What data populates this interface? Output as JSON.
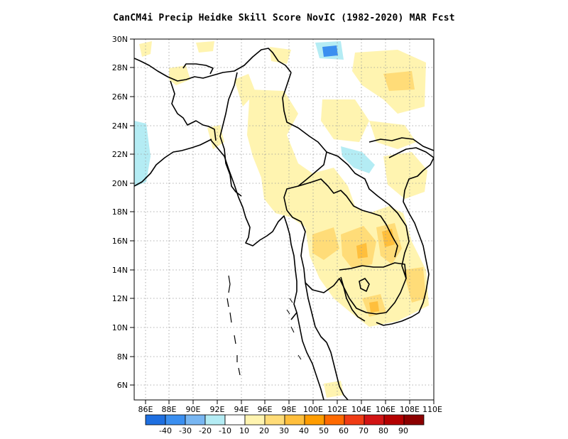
{
  "title": "CanCM4i Precip Heidke Skill Score NovIC (1982-2020) MAR Fcst",
  "map": {
    "lon_range": [
      85,
      110
    ],
    "lat_range": [
      5,
      30
    ],
    "lon_tick_labels": [
      "86E",
      "88E",
      "90E",
      "92E",
      "94E",
      "96E",
      "98E",
      "100E",
      "102E",
      "104E",
      "106E",
      "108E",
      "110E"
    ],
    "lat_tick_labels": [
      "6N",
      "8N",
      "10N",
      "12N",
      "14N",
      "16N",
      "18N",
      "20N",
      "22N",
      "24N",
      "26N",
      "28N",
      "30N"
    ],
    "grid": "dotted"
  },
  "colorbar": {
    "labels": [
      "-40",
      "-30",
      "-20",
      "-10",
      "10",
      "20",
      "30",
      "40",
      "50",
      "60",
      "70",
      "80",
      "90"
    ],
    "colors": [
      "#1e6fe0",
      "#3b8ff0",
      "#78b6f2",
      "#b4ecf4",
      "#ffffff",
      "#fff4b0",
      "#ffdc78",
      "#ffbf3c",
      "#ff9d00",
      "#ff6a00",
      "#f03c14",
      "#d21414",
      "#b40000",
      "#8c0000"
    ]
  },
  "features": {
    "coastline_color": "#000000",
    "negative_skill_color": "#b4ecf4",
    "strong_negative_skill_color": "#3b8ff0",
    "low_skill_color": "#fff4b0",
    "mid_skill_color": "#ffdc78",
    "high_skill_color": "#ffbf3c"
  }
}
